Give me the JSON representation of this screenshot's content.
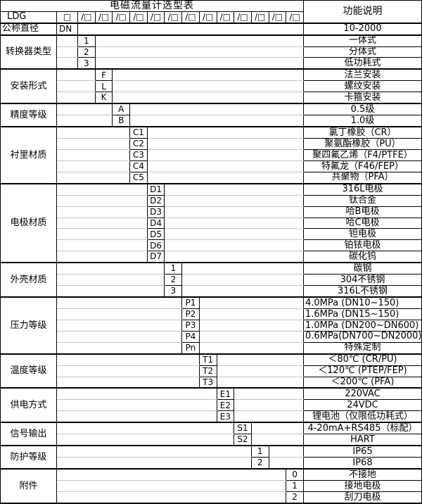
{
  "title": "电磁流量计选型表",
  "desc_header": "功能说明",
  "model_row": {
    "model": "LDG",
    "base_box": "□",
    "slot_box": "/□",
    "slot_count": 13
  },
  "colors": {
    "border": "#000000",
    "grid_light": "#c6c6c6",
    "background": "#ffffff",
    "text": "#000000"
  },
  "categories": [
    {
      "label": "公称直径",
      "label_align": "left",
      "column": 1,
      "items": [
        {
          "code": "DN",
          "code_align": "left",
          "desc": "10-2000"
        }
      ]
    },
    {
      "label": "转换器类型",
      "column": 2,
      "items": [
        {
          "code": "1",
          "desc": "一体式"
        },
        {
          "code": "2",
          "desc": "分体式"
        },
        {
          "code": "3",
          "desc": "低功耗式"
        }
      ]
    },
    {
      "label": "安装形式",
      "column": 3,
      "items": [
        {
          "code": "F",
          "desc": "法兰安装"
        },
        {
          "code": "L",
          "desc": "螺纹安装"
        },
        {
          "code": "K",
          "desc": "卡箍安装"
        }
      ]
    },
    {
      "label": "精度等级",
      "column": 4,
      "items": [
        {
          "code": "A",
          "desc": "0.5级"
        },
        {
          "code": "B",
          "desc": "1.0级"
        }
      ]
    },
    {
      "label": "衬里材质",
      "column": 5,
      "items": [
        {
          "code": "C1",
          "desc": "氯丁橡胶（CR）"
        },
        {
          "code": "C2",
          "desc": "聚氨酯橡胶（PU）"
        },
        {
          "code": "C3",
          "desc": "聚四氟乙烯（F4/PTFE）"
        },
        {
          "code": "C4",
          "desc": "特氟龙（F46/FEP）"
        },
        {
          "code": "C5",
          "desc": "共聚物（PFA）"
        }
      ]
    },
    {
      "label": "电极材质",
      "column": 6,
      "items": [
        {
          "code": "D1",
          "desc": "316L电极"
        },
        {
          "code": "D2",
          "desc": "钛合金"
        },
        {
          "code": "D3",
          "desc": "哈B电极"
        },
        {
          "code": "D4",
          "desc": "哈C电极"
        },
        {
          "code": "D5",
          "desc": "钽电极"
        },
        {
          "code": "D6",
          "desc": "铂铱电极"
        },
        {
          "code": "D7",
          "desc": "碳化钨"
        }
      ]
    },
    {
      "label": "外壳材质",
      "column": 7,
      "items": [
        {
          "code": "1",
          "desc": "碳钢"
        },
        {
          "code": "2",
          "desc": "304不锈钢"
        },
        {
          "code": "3",
          "desc": "316L不锈钢"
        }
      ]
    },
    {
      "label": "压力等级",
      "column": 8,
      "items": [
        {
          "code": "P1",
          "desc": "4.0MPa (DN10~150)",
          "desc_align": "left"
        },
        {
          "code": "P2",
          "desc": "1.6MPa (DN15~150)",
          "desc_align": "left"
        },
        {
          "code": "P3",
          "desc": "1.0MPa (DN200~DN600)",
          "desc_align": "left"
        },
        {
          "code": "P4",
          "desc": "0.6MPa(DN700~DN2000)",
          "desc_align": "left"
        },
        {
          "code": "Pn",
          "desc": "特殊定制"
        }
      ]
    },
    {
      "label": "温度等级",
      "column": 9,
      "items": [
        {
          "code": "T1",
          "desc": "＜80℃ (CR/PU)"
        },
        {
          "code": "T2",
          "desc": "＜120℃ (PTEP/FEP)"
        },
        {
          "code": "T3",
          "desc": "＜200℃ (PFA)"
        }
      ]
    },
    {
      "label": "供电方式",
      "column": 10,
      "items": [
        {
          "code": "E1",
          "desc": "220VAC"
        },
        {
          "code": "E2",
          "desc": "24VDC"
        },
        {
          "code": "E3",
          "desc": "锂电池（仅限低功耗式）"
        }
      ]
    },
    {
      "label": "信号输出",
      "column": 11,
      "items": [
        {
          "code": "S1",
          "desc": "4-20mA+RS485（标配）"
        },
        {
          "code": "S2",
          "desc": "HART"
        }
      ]
    },
    {
      "label": "防护等级",
      "column": 12,
      "items": [
        {
          "code": "1",
          "desc": "IP65"
        },
        {
          "code": "2",
          "desc": "IP68"
        }
      ]
    },
    {
      "label": "附件",
      "column": 14,
      "items": [
        {
          "code": "0",
          "desc": "不接地"
        },
        {
          "code": "1",
          "desc": "接地电极"
        },
        {
          "code": "2",
          "desc": "刮刀电极"
        }
      ]
    }
  ]
}
